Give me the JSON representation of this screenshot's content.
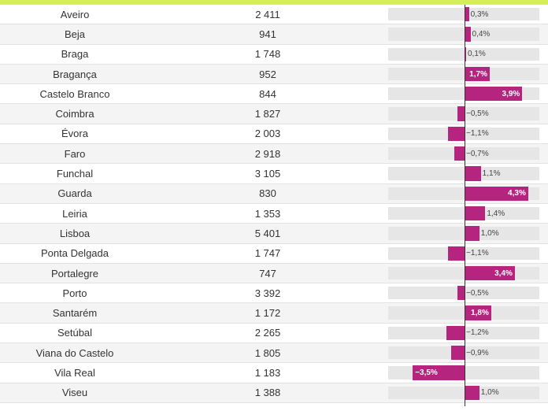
{
  "colors": {
    "accent_top": "#d6ef57",
    "bar": "#b5247f",
    "track": "#e6e6e6",
    "row_alt": "#f4f4f4"
  },
  "chart_data": {
    "type": "bar",
    "orientation": "horizontal",
    "categories": [
      "Aveiro",
      "Beja",
      "Braga",
      "Bragança",
      "Castelo Branco",
      "Coimbra",
      "Évora",
      "Faro",
      "Funchal",
      "Guarda",
      "Leiria",
      "Lisboa",
      "Ponta Delgada",
      "Portalegre",
      "Porto",
      "Santarém",
      "Setúbal",
      "Viana do Castelo",
      "Vila Real",
      "Viseu"
    ],
    "totals": [
      "2 411",
      "941",
      "1 748",
      "952",
      "844",
      "1 827",
      "2 003",
      "2 918",
      "3 105",
      "830",
      "1 353",
      "5 401",
      "1 747",
      "747",
      "3 392",
      "1 172",
      "2 265",
      "1 805",
      "1 183",
      "1 388"
    ],
    "values": [
      0.3,
      0.4,
      0.1,
      1.7,
      3.9,
      -0.5,
      -1.1,
      -0.7,
      1.1,
      4.3,
      1.4,
      1.0,
      -1.1,
      3.4,
      -0.5,
      1.8,
      -1.2,
      -0.9,
      -3.5,
      1.0
    ],
    "value_labels": [
      "0,3%",
      "0,4%",
      "0,1%",
      "1,7%",
      "3,9%",
      "−0,5%",
      "−1,1%",
      "−0,7%",
      "1,1%",
      "4,3%",
      "1,4%",
      "1,0%",
      "−1,1%",
      "3,4%",
      "−0,5%",
      "1,8%",
      "−1,2%",
      "−0,9%",
      "−3,5%",
      "1,0%"
    ],
    "xlim": [
      -5.0,
      5.0
    ]
  }
}
